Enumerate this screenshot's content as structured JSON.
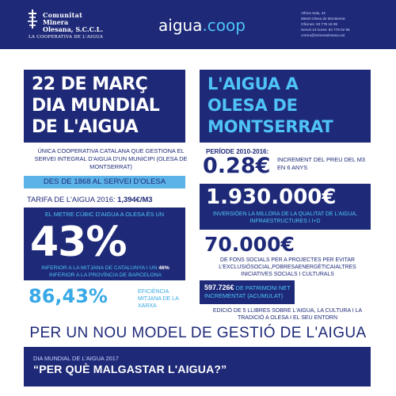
{
  "header": {
    "logo": {
      "name_line1": "Comunitat",
      "name_line2": "Minera",
      "name_line3": "Olesana, S.C.C.L.",
      "tagline": "LA COOPERATIVA DE L'AIGUA"
    },
    "brand_main": "aigua",
    "brand_suffix": ".coop",
    "address": [
      "Alfons Sala, 42",
      "08640 Olesa de Montserrat",
      "Oficines: 93 778 18 99",
      "Servei 24 hores: 93 778 02 95",
      "correu@mineraolesana.cat"
    ]
  },
  "left": {
    "title_line1": "22 DE MARÇ",
    "title_line2": "DIA MUNDIAL",
    "title_line3": "DE L'AIGUA",
    "description": "ÚNICA COOPERATIVA CATALANA QUE GESTIONA EL SERVEI INTEGRAL D'AIGUA D'UN MUNICIPI (OLESA DE MONTSERRAT)",
    "since": "DES DE 1868 AL SERVEI D'OLESA",
    "tarifa_label": "TARIFA DE L'AIGUA 2016: ",
    "tarifa_value": "1,394€/M3",
    "pct_caption": "EL METRE CÚBIC D'AIGUA A OLESA ÉS UN",
    "pct_value": "43%",
    "pct_sub_part1": "INFERIOR A LA MITJANA DE CATALUNYA I UN ",
    "pct_sub_bold": "46%",
    "pct_sub_part2": " INFERIOR A LA PROVÍNCIA DE BARCELONA",
    "efficiency_value": "86,43%",
    "efficiency_label": "EFICIÈNCIA MITJANA DE LA XARXA"
  },
  "right": {
    "title_line1": "L'AIGUA A",
    "title_line2": "OLESA DE",
    "title_line3": "MONTSERRAT",
    "period": "PERÍODE 2010-2016:",
    "increase_value": "0.28€",
    "increase_label": "INCREMENT DEL PREU DEL M3 EN 6 ANYS",
    "investment_value": "1.930.000€",
    "investment_label": "INVERSIÓEN LA MILLORA DE LA QUALITAT DE L'AIGUA, INFRAESTRUCTURES I I+D",
    "funds_value": "70.000€",
    "funds_label": "DE FONS SOCIALS PER A PROJECTES PER EVITAR L'EXCLUSIÓSOCIAL,POBRESAENERGÈTICAIALTRES INICIATIVES SOCIALS I CULTURALS",
    "patrimony_value": "597.726€",
    "patrimony_label": " DE PATRIMONI NET INCREMENTAT (ACUMULAT)",
    "edition_label": "EDICIÓ DE 5 LLIBRES SOBRE L'AIGUA, LA CULTURA I LA TRADICIÓ A OLESA I EL SEU ENTORN"
  },
  "model_heading": "PER UN NOU MODEL DE GESTIÓ DE L'AIGUA",
  "bottom": {
    "label": "DIA MUNDIAL DE L'AIGUA 2017",
    "quote": "“PER QUÈ MALGASTAR L'AIGUA?”"
  },
  "colors": {
    "navy": "#1e2a78",
    "light_blue": "#4fc3f7",
    "mid_blue": "#38a9e6",
    "bar_blue": "#5bb3e6"
  }
}
